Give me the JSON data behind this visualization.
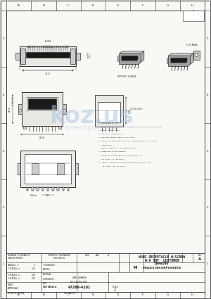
{
  "bg_color": "#f0f0ec",
  "paper_color": "#f8f8f5",
  "line_color": "#303030",
  "dim_color": "#444444",
  "text_color": "#222222",
  "dark_fill": "#1a1a1a",
  "med_fill": "#888888",
  "light_fill": "#cccccc",
  "very_light": "#e8e8e4",
  "watermark_color": "#aac4e0",
  "title_block": {
    "part_title_1": "HDMI RECEPTACLE W/SCREW",
    "part_title_2": "R/A SMT  CUSTOMER",
    "part_title_3": "DRAWING",
    "company": "MOLEX INCORPORATED",
    "part_no": "SD-47266-001",
    "doc_no": "47266-4201",
    "rev": "A"
  },
  "notes": [
    "1. APPLICABLE TO ALL.",
    "2. MATERIAL: HIGH TEMPERATURE THERMOPLASTIC, BLACK, UL94V-0 RATED.",
    "3. SHELL: COPPER ALLOY.",
    "4. CONTACTS: COPPER ALLOY.",
    "5. PHOSPHOR BRONZE, BRIGHT TIN PLATED.",
    "6. GOLD FLASH ON MATING AREA, 500 MICROINCH MIN GOLD PLATING",
    "   (SELECTIVE).",
    "7. NICKEL UNDERPLATE: 40 MICROINCH MIN.",
    "8. DIMENSIONS IN MILLIMETERS.",
    "9. COMPLIANT TO ROHS DIRECTIVE 2002/95/EC AND",
    "   IEC 62321 (AKA EN 62321).",
    "10. PRODUCT COMPLIANT TO ROHS DIRECTIVE 2002/95/EC AND",
    "    IEC 62321 (AKA EN 62321)."
  ]
}
